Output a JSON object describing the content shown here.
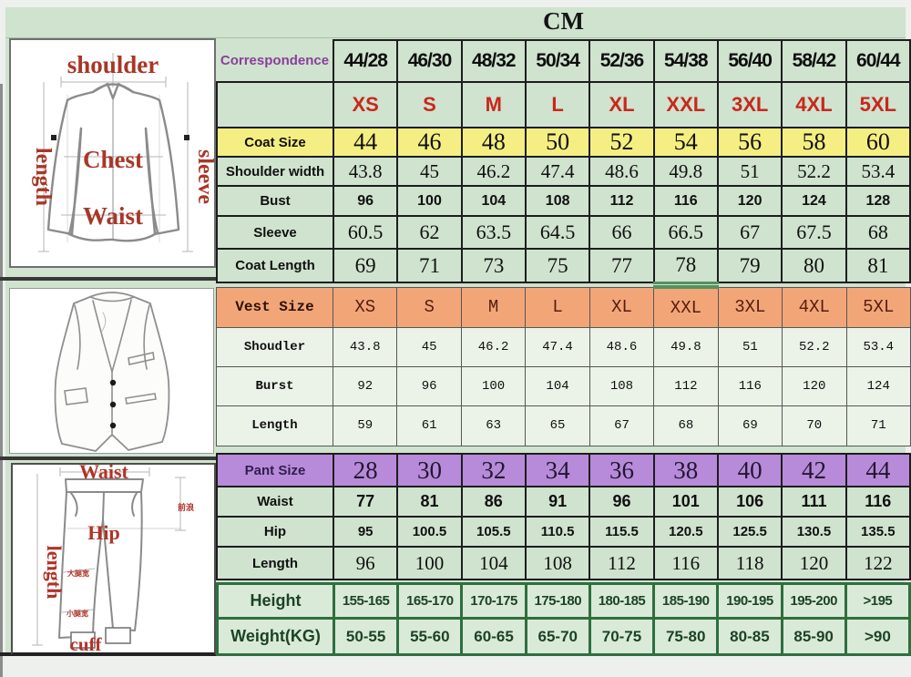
{
  "title": "CM",
  "diagrams": {
    "jacket": {
      "shoulder": "shoulder",
      "length": "length",
      "sleeve": "sleeve",
      "chest": "Chest",
      "waist": "Waist"
    },
    "pants": {
      "waist": "Waist",
      "length": "length",
      "hip": "Hip",
      "cuff": "cuff",
      "front_rise_note": "前浪",
      "thigh_note": "大腿宽",
      "calf_note": "小腿宽"
    }
  },
  "size_table": {
    "sections": {
      "coat": {
        "rows": [
          {
            "kind": "correspondence",
            "label": "Correspondence",
            "cells": [
              "44/28",
              "46/30",
              "48/32",
              "50/34",
              "52/36",
              "54/38",
              "56/40",
              "58/42",
              "60/44"
            ]
          },
          {
            "kind": "sizes",
            "label": "",
            "cells": [
              "XS",
              "S",
              "M",
              "L",
              "XL",
              "XXL",
              "3XL",
              "4XL",
              "5XL"
            ]
          },
          {
            "kind": "coat-size",
            "label": "Coat Size",
            "cells": [
              "44",
              "46",
              "48",
              "50",
              "52",
              "54",
              "56",
              "58",
              "60"
            ]
          },
          {
            "kind": "shoulder",
            "label": "Shoulder width",
            "cells": [
              "43.8",
              "45",
              "46.2",
              "47.4",
              "48.6",
              "49.8",
              "51",
              "52.2",
              "53.4"
            ]
          },
          {
            "kind": "bust",
            "label": "Bust",
            "cells": [
              "96",
              "100",
              "104",
              "108",
              "112",
              "116",
              "120",
              "124",
              "128"
            ]
          },
          {
            "kind": "sleeve",
            "label": "Sleeve",
            "cells": [
              "60.5",
              "62",
              "63.5",
              "64.5",
              "66",
              "66.5",
              "67",
              "67.5",
              "68"
            ]
          },
          {
            "kind": "coat-length",
            "label": "Coat Length",
            "cells": [
              "69",
              "71",
              "73",
              "75",
              "77",
              "78",
              "79",
              "80",
              "81"
            ]
          }
        ]
      },
      "vest": {
        "rows": [
          {
            "kind": "vest-size",
            "label": "Vest Size",
            "cells": [
              "XS",
              "S",
              "M",
              "L",
              "XL",
              "XXL",
              "3XL",
              "4XL",
              "5XL"
            ]
          },
          {
            "kind": "vest-shoulder",
            "label": "Shoudler",
            "cells": [
              "43.8",
              "45",
              "46.2",
              "47.4",
              "48.6",
              "49.8",
              "51",
              "52.2",
              "53.4"
            ]
          },
          {
            "kind": "vest-bust",
            "label": "Burst",
            "cells": [
              "92",
              "96",
              "100",
              "104",
              "108",
              "112",
              "116",
              "120",
              "124"
            ]
          },
          {
            "kind": "vest-length",
            "label": "Length",
            "cells": [
              "59",
              "61",
              "63",
              "65",
              "67",
              "68",
              "69",
              "70",
              "71"
            ]
          }
        ]
      },
      "pant": {
        "rows": [
          {
            "kind": "pant-size",
            "label": "Pant Size",
            "cells": [
              "28",
              "30",
              "32",
              "34",
              "36",
              "38",
              "40",
              "42",
              "44"
            ]
          },
          {
            "kind": "waist",
            "label": "Waist",
            "cells": [
              "77",
              "81",
              "86",
              "91",
              "96",
              "101",
              "106",
              "111",
              "116"
            ]
          },
          {
            "kind": "hip",
            "label": "Hip",
            "cells": [
              "95",
              "100.5",
              "105.5",
              "110.5",
              "115.5",
              "120.5",
              "125.5",
              "130.5",
              "135.5"
            ]
          },
          {
            "kind": "pant-length",
            "label": "Length",
            "cells": [
              "96",
              "100",
              "104",
              "108",
              "112",
              "116",
              "118",
              "120",
              "122"
            ]
          }
        ]
      },
      "body": {
        "rows": [
          {
            "kind": "height",
            "label": "Height",
            "cells": [
              "155-165",
              "165-170",
              "170-175",
              "175-180",
              "180-185",
              "185-190",
              "190-195",
              "195-200",
              ">195"
            ]
          },
          {
            "kind": "weight",
            "label": "Weight(KG)",
            "cells": [
              "50-55",
              "55-60",
              "60-65",
              "65-70",
              "70-75",
              "75-80",
              "80-85",
              "85-90",
              ">90"
            ]
          }
        ]
      }
    }
  },
  "colors": {
    "table_green": "#cfe3cf",
    "pale_green": "#ebf2e8",
    "coat_row_yellow": "#f5ee82",
    "vest_row_orange": "#f2a678",
    "pant_row_purple": "#b78bd9",
    "body_row_green": "#d9ead9",
    "body_border_green": "#2e6f3e",
    "size_text_red": "#c8281c",
    "correspondence_purple": "#8a3f9b",
    "diagram_label_red": "#a83727"
  }
}
